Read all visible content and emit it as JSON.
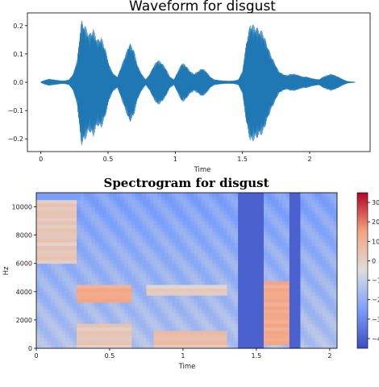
{
  "chart_data": [
    {
      "type": "line",
      "title": "Waveform for disgust",
      "xlabel": "Time",
      "ylabel": "",
      "xlim": [
        -0.1,
        2.45
      ],
      "ylim": [
        -0.245,
        0.245
      ],
      "xticks": [
        0,
        0.5,
        1,
        1.5,
        2
      ],
      "xtick_labels": [
        "0",
        "0.5",
        "1",
        "1.5",
        "2"
      ],
      "yticks": [
        -0.2,
        -0.1,
        0.0,
        0.1,
        0.2
      ],
      "ytick_labels": [
        "−0.2",
        "−0.1",
        "0.0",
        "0.1",
        "0.2"
      ],
      "line_color": "#1f77b4",
      "series": [
        {
          "x": [
            0.0,
            0.03,
            0.06,
            0.09,
            0.12,
            0.15,
            0.18,
            0.21,
            0.24,
            0.27,
            0.3,
            0.33,
            0.36,
            0.39,
            0.42,
            0.45,
            0.48,
            0.51,
            0.54,
            0.57,
            0.6,
            0.63,
            0.66,
            0.69,
            0.72,
            0.75,
            0.78,
            0.81,
            0.84,
            0.87,
            0.9,
            0.93,
            0.96,
            0.99,
            1.02,
            1.05,
            1.08,
            1.11,
            1.14,
            1.17,
            1.2,
            1.23,
            1.26,
            1.29,
            1.32,
            1.35,
            1.38,
            1.41,
            1.44,
            1.47,
            1.5,
            1.53,
            1.56,
            1.59,
            1.62,
            1.65,
            1.68,
            1.71,
            1.74,
            1.77,
            1.8,
            1.83,
            1.86,
            1.89,
            1.92,
            1.95,
            1.98,
            2.01,
            2.04,
            2.07,
            2.1,
            2.13,
            2.16,
            2.19,
            2.22,
            2.25,
            2.28,
            2.31,
            2.34
          ],
          "values": [
            0.002,
            0.008,
            0.012,
            0.01,
            0.008,
            0.006,
            0.006,
            0.01,
            0.03,
            0.08,
            0.22,
            0.2,
            0.17,
            0.19,
            0.15,
            0.16,
            0.12,
            0.06,
            0.03,
            0.02,
            0.06,
            0.1,
            0.14,
            0.12,
            0.06,
            0.03,
            0.01,
            0.03,
            0.06,
            0.08,
            0.07,
            0.05,
            0.02,
            0.01,
            0.04,
            0.07,
            0.06,
            0.04,
            0.03,
            0.04,
            0.05,
            0.04,
            0.02,
            0.01,
            0.008,
            0.006,
            0.005,
            0.005,
            0.006,
            0.01,
            0.04,
            0.15,
            0.21,
            0.2,
            0.19,
            0.18,
            0.14,
            0.1,
            0.07,
            0.04,
            0.03,
            0.025,
            0.03,
            0.03,
            0.025,
            0.02,
            0.02,
            0.015,
            0.012,
            0.01,
            0.02,
            0.025,
            0.03,
            0.025,
            0.018,
            0.01,
            0.004,
            0.002,
            0.001
          ]
        }
      ]
    },
    {
      "type": "heatmap",
      "title": "Spectrogram for disgust",
      "xlabel": "Time",
      "ylabel": "Hz",
      "xlim": [
        0,
        2.05
      ],
      "ylim": [
        0,
        11000
      ],
      "xticks": [
        0,
        0.5,
        1,
        1.5,
        2
      ],
      "xtick_labels": [
        "0",
        "0.5",
        "1",
        "1.5",
        "2"
      ],
      "yticks": [
        0,
        2000,
        4000,
        6000,
        8000,
        10000
      ],
      "ytick_labels": [
        "0",
        "2000",
        "4000",
        "6000",
        "8000",
        "10000"
      ],
      "colorscale": "coolwarm",
      "zlim": [
        -45,
        35
      ],
      "colorbar_ticks": [
        30,
        20,
        10,
        0,
        -10,
        -20,
        -30,
        -40
      ],
      "colorbar_tick_labels": [
        "30",
        "20",
        "10",
        "0",
        "−10",
        "−20",
        "−30",
        "−40"
      ],
      "regions": [
        {
          "t": [
            0.0,
            0.28
          ],
          "f": [
            6000,
            10600
          ],
          "db": 5
        },
        {
          "t": [
            0.28,
            0.65
          ],
          "f": [
            3200,
            4600
          ],
          "db": 15
        },
        {
          "t": [
            0.28,
            0.65
          ],
          "f": [
            0,
            1800
          ],
          "db": 5
        },
        {
          "t": [
            0.75,
            1.3
          ],
          "f": [
            3800,
            4500
          ],
          "db": 3
        },
        {
          "t": [
            0.8,
            1.3
          ],
          "f": [
            0,
            1200
          ],
          "db": 8
        },
        {
          "t": [
            1.55,
            1.8
          ],
          "f": [
            300,
            4800
          ],
          "db": 15
        },
        {
          "t": [
            1.72,
            1.8
          ],
          "f": [
            0,
            11000
          ],
          "db": -40
        },
        {
          "t": [
            1.38,
            1.55
          ],
          "f": [
            0,
            11000
          ],
          "db": -40
        }
      ]
    }
  ]
}
